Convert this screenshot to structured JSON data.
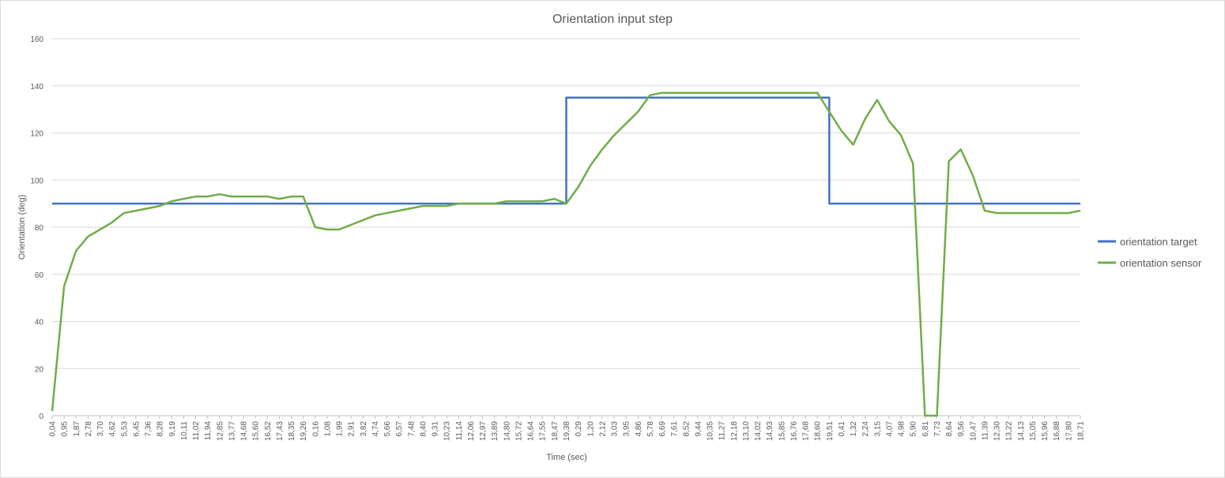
{
  "chart_data": {
    "type": "line",
    "title": "Orientation input step",
    "xlabel": "Time (sec)",
    "ylabel": "Orientation (deg)",
    "ylim": [
      0,
      160
    ],
    "yticks": [
      0,
      20,
      40,
      60,
      80,
      100,
      120,
      140,
      160
    ],
    "grid": true,
    "legend": "right",
    "categories": [
      "0,04",
      "0,95",
      "1,87",
      "2,78",
      "3,70",
      "4,62",
      "5,53",
      "6,45",
      "7,36",
      "8,28",
      "9,19",
      "10,11",
      "11,02",
      "11,94",
      "12,85",
      "13,77",
      "14,68",
      "15,60",
      "16,52",
      "17,43",
      "18,35",
      "19,26",
      "0,16",
      "1,08",
      "1,99",
      "2,91",
      "3,82",
      "4,74",
      "5,66",
      "6,57",
      "7,48",
      "8,40",
      "9,31",
      "10,23",
      "11,14",
      "12,06",
      "12,97",
      "13,89",
      "14,80",
      "15,72",
      "16,64",
      "17,55",
      "18,47",
      "19,38",
      "0,29",
      "1,20",
      "2,12",
      "3,03",
      "3,95",
      "4,86",
      "5,78",
      "6,69",
      "7,61",
      "8,52",
      "9,44",
      "10,35",
      "11,27",
      "12,18",
      "13,10",
      "14,02",
      "14,93",
      "15,85",
      "16,76",
      "17,68",
      "18,60",
      "19,51",
      "0,41",
      "1,32",
      "2,24",
      "3,15",
      "4,07",
      "4,98",
      "5,90",
      "6,81",
      "7,73",
      "8,64",
      "9,56",
      "10,47",
      "11,39",
      "12,30",
      "13,22",
      "14,13",
      "15,05",
      "15,96",
      "16,88",
      "17,80",
      "18,71"
    ],
    "series": [
      {
        "name": "orientation target",
        "color": "#4472c4",
        "values": [
          90,
          90,
          90,
          90,
          90,
          90,
          90,
          90,
          90,
          90,
          90,
          90,
          90,
          90,
          90,
          90,
          90,
          90,
          90,
          90,
          90,
          90,
          90,
          90,
          90,
          90,
          90,
          90,
          90,
          90,
          90,
          90,
          90,
          90,
          90,
          90,
          90,
          90,
          90,
          90,
          90,
          90,
          90,
          135,
          135,
          135,
          135,
          135,
          135,
          135,
          135,
          135,
          135,
          135,
          135,
          135,
          135,
          135,
          135,
          135,
          135,
          135,
          135,
          135,
          135,
          90,
          90,
          90,
          90,
          90,
          90,
          90,
          90,
          90,
          90,
          90,
          90,
          90,
          90,
          90,
          90,
          90,
          90,
          90,
          90,
          90,
          90
        ]
      },
      {
        "name": "orientation sensor",
        "color": "#70ad47",
        "values": [
          2,
          55,
          70,
          76,
          79,
          82,
          86,
          87,
          88,
          89,
          91,
          92,
          93,
          93,
          94,
          93,
          93,
          93,
          93,
          92,
          93,
          93,
          80,
          79,
          79,
          81,
          83,
          85,
          86,
          87,
          88,
          89,
          89,
          89,
          90,
          90,
          90,
          90,
          91,
          91,
          91,
          91,
          92,
          90,
          97,
          106,
          113,
          119,
          124,
          129,
          136,
          137,
          137,
          137,
          137,
          137,
          137,
          137,
          137,
          137,
          137,
          137,
          137,
          137,
          137,
          129,
          121,
          115,
          126,
          134,
          125,
          119,
          107,
          0,
          0,
          108,
          113,
          102,
          87,
          86,
          86,
          86,
          86,
          86,
          86,
          86,
          87
        ]
      }
    ]
  }
}
